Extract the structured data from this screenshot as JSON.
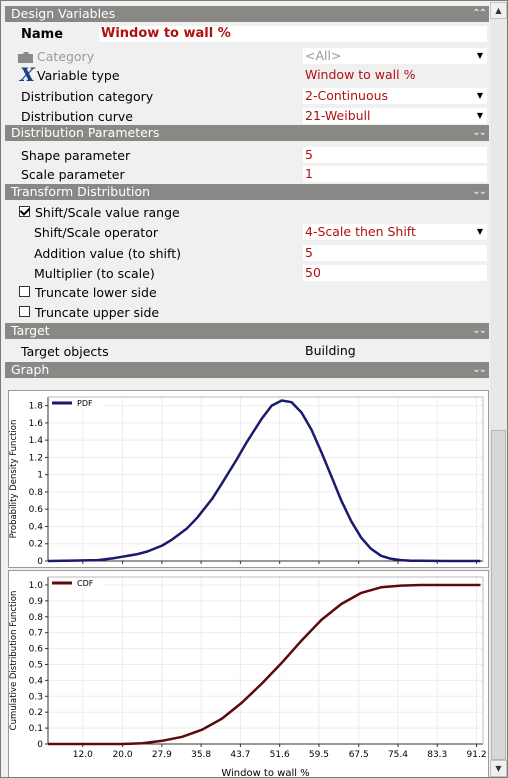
{
  "sections": {
    "design_variables": "Design Variables",
    "distribution_parameters": "Distribution Parameters",
    "transform_distribution": "Transform Distribution",
    "target": "Target",
    "graph": "Graph"
  },
  "design": {
    "name_label": "Name",
    "name_value": "Window to wall %",
    "category_label": "Category",
    "category_value": "<All>",
    "variable_type_label": "Variable type",
    "variable_type_value": "Window to wall %",
    "dist_category_label": "Distribution category",
    "dist_category_value": "2-Continuous",
    "dist_curve_label": "Distribution curve",
    "dist_curve_value": "21-Weibull"
  },
  "params": {
    "shape_label": "Shape parameter",
    "shape_value": "5",
    "scale_label": "Scale parameter",
    "scale_value": "1"
  },
  "transform": {
    "shift_scale_label": "Shift/Scale value range",
    "shift_scale_checked": true,
    "operator_label": "Shift/Scale operator",
    "operator_value": "4-Scale then Shift",
    "addition_label": "Addition value (to shift)",
    "addition_value": "5",
    "multiplier_label": "Multiplier (to scale)",
    "multiplier_value": "50",
    "truncate_lower_label": "Truncate lower side",
    "truncate_lower_checked": false,
    "truncate_upper_label": "Truncate upper side",
    "truncate_upper_checked": false
  },
  "target": {
    "objects_label": "Target objects",
    "objects_value": "Building"
  },
  "colors": {
    "pdf_line": "#1a1a6e",
    "cdf_line": "#5c0a0a",
    "value_text": "#b01010",
    "header_bg": "#8a8885"
  },
  "chart_data": [
    {
      "type": "line",
      "legend": "PDF",
      "ylabel": "Probability Density Function",
      "xlabel": "",
      "xlim": [
        5,
        92.5
      ],
      "ylim": [
        0,
        1.9
      ],
      "yticks": [
        "0",
        "0.2",
        "0.4",
        "0.6",
        "0.8",
        "1",
        "1.2",
        "1.4",
        "1.6",
        "1.8"
      ],
      "series": [
        {
          "name": "PDF",
          "x": [
            5,
            10,
            15,
            18,
            20,
            23,
            25,
            28,
            30,
            33,
            35,
            38,
            40,
            43,
            45,
            48,
            50,
            52,
            54,
            56,
            58,
            60,
            62,
            64,
            66,
            68,
            70,
            72,
            74,
            76,
            78,
            80,
            85,
            92
          ],
          "y": [
            0.0,
            0.005,
            0.01,
            0.03,
            0.05,
            0.08,
            0.11,
            0.18,
            0.25,
            0.38,
            0.5,
            0.72,
            0.9,
            1.18,
            1.38,
            1.65,
            1.8,
            1.86,
            1.84,
            1.72,
            1.52,
            1.26,
            0.98,
            0.7,
            0.46,
            0.27,
            0.14,
            0.06,
            0.025,
            0.01,
            0.004,
            0.002,
            0.0,
            0.0
          ]
        }
      ]
    },
    {
      "type": "line",
      "legend": "CDF",
      "ylabel": "Cumulative Distribution Function",
      "xlabel": "Window to wall %",
      "xlim": [
        5,
        92.5
      ],
      "ylim": [
        0,
        1.05
      ],
      "yticks": [
        "0",
        "0.1",
        "0.2",
        "0.3",
        "0.4",
        "0.5",
        "0.6",
        "0.7",
        "0.8",
        "0.9",
        "1.0"
      ],
      "xticks": [
        "12.0",
        "20.0",
        "27.9",
        "35.8",
        "43.7",
        "51.6",
        "59.5",
        "67.5",
        "75.4",
        "83.3",
        "91.2"
      ],
      "series": [
        {
          "name": "CDF",
          "x": [
            5,
            12,
            20,
            24,
            28,
            32,
            36,
            40,
            44,
            48,
            52,
            56,
            60,
            64,
            68,
            72,
            76,
            80,
            85,
            92
          ],
          "y": [
            0.0,
            0.0,
            0.0,
            0.005,
            0.02,
            0.045,
            0.09,
            0.16,
            0.26,
            0.38,
            0.51,
            0.65,
            0.78,
            0.88,
            0.95,
            0.985,
            0.996,
            1.0,
            1.0,
            1.0
          ]
        }
      ]
    }
  ]
}
